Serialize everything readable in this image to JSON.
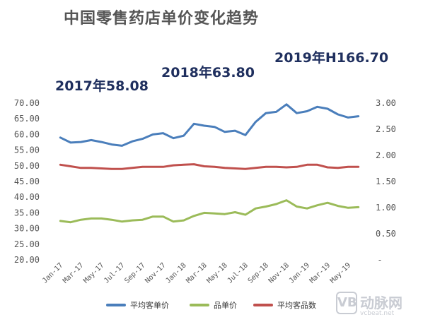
{
  "title": "中国零售药店单价变化趋势",
  "annotations": [
    "2017年58.08",
    "2018年63.80",
    "2019年H166.70"
  ],
  "watermark": {
    "logo": "VB",
    "name": "动脉网",
    "url": "vcbeat.net"
  },
  "chart_data": {
    "type": "line",
    "title": "中国零售药店单价变化趋势",
    "grid": false,
    "legend_position": "bottom",
    "x": [
      "Jan-17",
      "Feb-17",
      "Mar-17",
      "Apr-17",
      "May-17",
      "Jun-17",
      "Jul-17",
      "Aug-17",
      "Sep-17",
      "Oct-17",
      "Nov-17",
      "Dec-17",
      "Jan-18",
      "Feb-18",
      "Mar-18",
      "Apr-18",
      "May-18",
      "Jun-18",
      "Jul-18",
      "Aug-18",
      "Sep-18",
      "Oct-18",
      "Nov-18",
      "Dec-18",
      "Jan-19",
      "Feb-19",
      "Mar-19",
      "Apr-19",
      "May-19",
      "Jun-19"
    ],
    "x_tick_labels": [
      "Jan-17",
      "Mar-17",
      "May-17",
      "Jul-17",
      "Sep-17",
      "Nov-17",
      "Jan-18",
      "Mar-18",
      "May-18",
      "Jul-18",
      "Sep-18",
      "Nov-18",
      "Jan-19",
      "Mar-19",
      "May-19"
    ],
    "y_left": {
      "ylim": [
        20,
        70
      ],
      "ticks": [
        "20.00",
        "25.00",
        "30.00",
        "35.00",
        "40.00",
        "45.00",
        "50.00",
        "55.00",
        "60.00",
        "65.00",
        "70.00"
      ]
    },
    "y_right": {
      "ylim": [
        0,
        3
      ],
      "ticks": [
        "-",
        "0.50",
        "1.00",
        "1.50",
        "2.00",
        "2.50",
        "3.00"
      ]
    },
    "series": [
      {
        "name": "平均客单价",
        "axis": "left",
        "color": "#4a7ebb",
        "values": [
          59.0,
          57.4,
          57.6,
          58.2,
          57.6,
          56.8,
          56.4,
          57.8,
          58.6,
          60.0,
          60.4,
          58.8,
          59.6,
          63.4,
          62.8,
          62.4,
          60.8,
          61.2,
          59.8,
          64.0,
          66.8,
          67.2,
          69.6,
          66.8,
          67.4,
          68.8,
          68.2,
          66.4,
          65.4,
          65.8
        ]
      },
      {
        "name": "品单价",
        "axis": "left",
        "color": "#9bbb59",
        "values": [
          32.4,
          32.0,
          32.8,
          33.2,
          33.2,
          32.8,
          32.2,
          32.6,
          32.8,
          33.8,
          33.8,
          32.2,
          32.6,
          34.0,
          35.0,
          34.8,
          34.6,
          35.2,
          34.4,
          36.4,
          37.0,
          37.8,
          39.0,
          37.0,
          36.4,
          37.4,
          38.2,
          37.2,
          36.6,
          36.8
        ]
      },
      {
        "name": "平均客品数",
        "axis": "right",
        "color": "#c0504d",
        "values": [
          1.82,
          1.79,
          1.76,
          1.76,
          1.75,
          1.74,
          1.74,
          1.76,
          1.78,
          1.78,
          1.78,
          1.81,
          1.82,
          1.83,
          1.79,
          1.78,
          1.76,
          1.75,
          1.74,
          1.76,
          1.78,
          1.78,
          1.77,
          1.78,
          1.82,
          1.82,
          1.77,
          1.76,
          1.78,
          1.78
        ]
      }
    ]
  }
}
